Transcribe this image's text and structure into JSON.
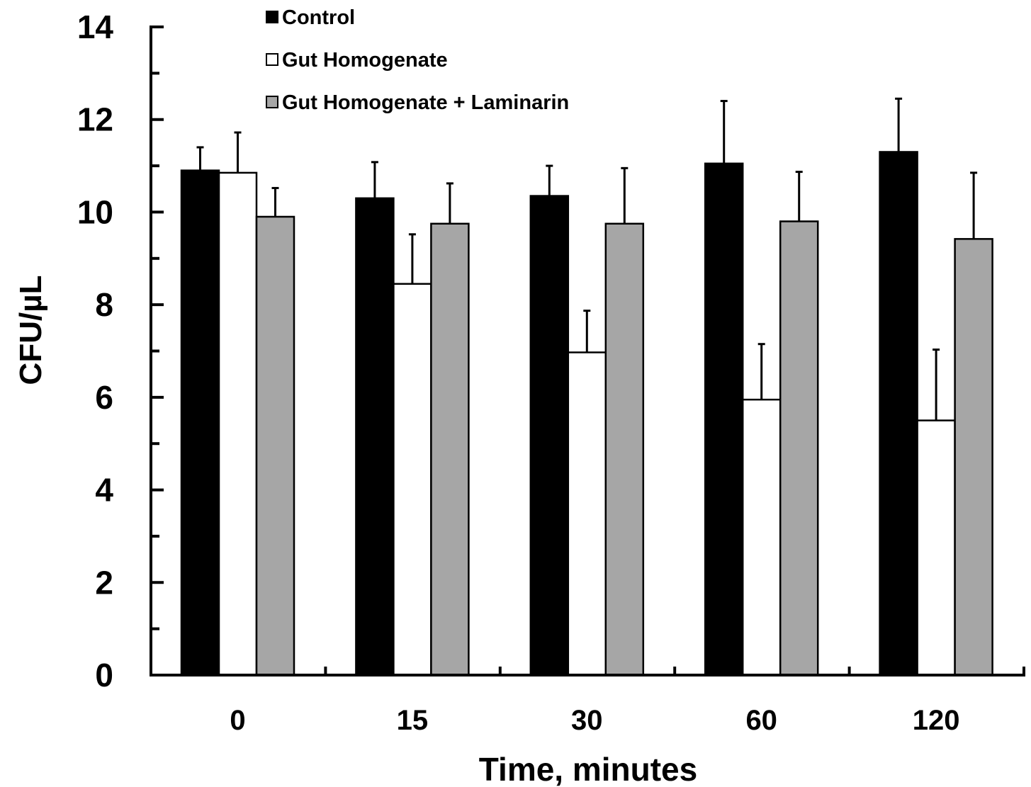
{
  "chart_data": {
    "type": "bar",
    "title": "",
    "xlabel": "Time, minutes",
    "ylabel": "CFU/µL",
    "ylim": [
      0,
      14
    ],
    "y_major_step": 2,
    "y_minor_step": 1,
    "categories": [
      "0",
      "15",
      "30",
      "60",
      "120"
    ],
    "y_tick_labels": [
      "0",
      "2",
      "4",
      "6",
      "8",
      "10",
      "12",
      "14"
    ],
    "legend_position": "top",
    "grid": false,
    "series": [
      {
        "name": "Control",
        "color": "#000000",
        "values": [
          10.9,
          10.3,
          10.35,
          11.05,
          11.3
        ],
        "errors": [
          0.5,
          0.78,
          0.65,
          1.35,
          1.15
        ]
      },
      {
        "name": "Gut Homogenate",
        "color": "#ffffff",
        "values": [
          10.85,
          8.45,
          6.97,
          5.95,
          5.5
        ],
        "errors": [
          0.87,
          1.07,
          0.9,
          1.2,
          1.53
        ]
      },
      {
        "name": "Gut Homogenate + Laminarin",
        "color": "#a6a6a6",
        "values": [
          9.9,
          9.75,
          9.75,
          9.8,
          9.42
        ],
        "errors": [
          0.62,
          0.87,
          1.2,
          1.07,
          1.43
        ]
      }
    ]
  }
}
